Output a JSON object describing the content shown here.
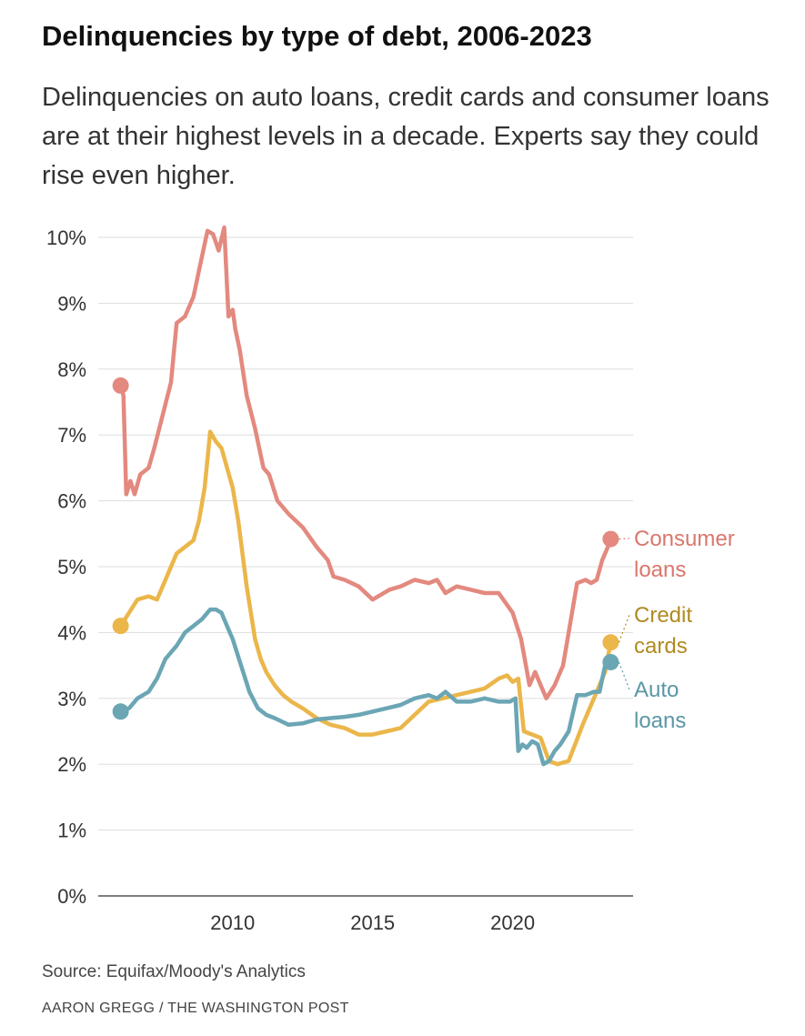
{
  "title": "Delinquencies by type of debt, 2006-2023",
  "subtitle": "Delinquencies on auto loans, credit cards and consumer loans are at their highest levels in a decade. Experts say they could rise even higher.",
  "source": "Source: Equifax/Moody's Analytics",
  "credit": "AARON GREGG / THE WASHINGTON POST",
  "chart_data": {
    "type": "line",
    "title": "Delinquencies by type of debt, 2006-2023",
    "xlabel": "",
    "ylabel": "",
    "xlim": [
      2005.2,
      2024.3
    ],
    "ylim": [
      0,
      10
    ],
    "x_ticks": [
      2010,
      2015,
      2020
    ],
    "x_tick_labels": [
      "2010",
      "2015",
      "2020"
    ],
    "y_ticks": [
      0,
      1,
      2,
      3,
      4,
      5,
      6,
      7,
      8,
      9,
      10
    ],
    "y_tick_labels": [
      "0%",
      "1%",
      "2%",
      "3%",
      "4%",
      "5%",
      "6%",
      "7%",
      "8%",
      "9%",
      "10%"
    ],
    "grid": "horizontal",
    "legend": "direct labels at right end of lines",
    "series": [
      {
        "name": "Consumer loans",
        "label_lines": [
          "Consumer",
          "loans"
        ],
        "color": "#e3897f",
        "label_color": "#d9776d",
        "x": [
          2006.0,
          2006.1,
          2006.2,
          2006.35,
          2006.5,
          2006.7,
          2007.0,
          2007.2,
          2007.5,
          2007.8,
          2008.0,
          2008.3,
          2008.6,
          2008.9,
          2009.1,
          2009.3,
          2009.5,
          2009.7,
          2009.85,
          2010.0,
          2010.1,
          2010.25,
          2010.5,
          2010.8,
          2011.1,
          2011.3,
          2011.6,
          2012.0,
          2012.5,
          2013.0,
          2013.4,
          2013.6,
          2014.0,
          2014.5,
          2015.0,
          2015.6,
          2016.0,
          2016.5,
          2017.0,
          2017.3,
          2017.6,
          2018.0,
          2018.5,
          2019.0,
          2019.5,
          2020.0,
          2020.3,
          2020.6,
          2020.8,
          2021.0,
          2021.2,
          2021.5,
          2021.8,
          2022.0,
          2022.3,
          2022.6,
          2022.8,
          2023.0,
          2023.2,
          2023.4,
          2023.5
        ],
        "y": [
          7.75,
          7.6,
          6.1,
          6.3,
          6.1,
          6.4,
          6.5,
          6.8,
          7.3,
          7.8,
          8.7,
          8.8,
          9.1,
          9.7,
          10.1,
          10.05,
          9.8,
          10.15,
          8.8,
          8.9,
          8.6,
          8.3,
          7.6,
          7.1,
          6.5,
          6.4,
          6.0,
          5.8,
          5.6,
          5.3,
          5.1,
          4.85,
          4.8,
          4.7,
          4.5,
          4.65,
          4.7,
          4.8,
          4.75,
          4.8,
          4.6,
          4.7,
          4.65,
          4.6,
          4.6,
          4.3,
          3.9,
          3.2,
          3.4,
          3.2,
          3.0,
          3.2,
          3.5,
          4.0,
          4.75,
          4.8,
          4.75,
          4.8,
          5.1,
          5.3,
          5.42
        ]
      },
      {
        "name": "Credit cards",
        "label_lines": [
          "Credit",
          "cards"
        ],
        "color": "#ebb64a",
        "label_color": "#b08a22",
        "x": [
          2006.0,
          2006.3,
          2006.6,
          2007.0,
          2007.3,
          2007.6,
          2008.0,
          2008.3,
          2008.6,
          2008.8,
          2009.0,
          2009.2,
          2009.4,
          2009.6,
          2009.8,
          2010.0,
          2010.2,
          2010.5,
          2010.8,
          2011.0,
          2011.2,
          2011.5,
          2011.8,
          2012.1,
          2012.5,
          2013.0,
          2013.5,
          2014.0,
          2014.5,
          2015.0,
          2015.5,
          2016.0,
          2016.5,
          2017.0,
          2017.5,
          2018.0,
          2018.5,
          2019.0,
          2019.5,
          2019.8,
          2020.0,
          2020.2,
          2020.4,
          2020.7,
          2021.0,
          2021.3,
          2021.6,
          2022.0,
          2022.5,
          2023.0,
          2023.3,
          2023.5
        ],
        "y": [
          4.1,
          4.3,
          4.5,
          4.55,
          4.5,
          4.8,
          5.2,
          5.3,
          5.4,
          5.7,
          6.2,
          7.05,
          6.9,
          6.8,
          6.5,
          6.2,
          5.7,
          4.7,
          3.9,
          3.6,
          3.4,
          3.2,
          3.05,
          2.95,
          2.85,
          2.7,
          2.6,
          2.55,
          2.45,
          2.45,
          2.5,
          2.55,
          2.75,
          2.95,
          3.0,
          3.05,
          3.1,
          3.15,
          3.3,
          3.35,
          3.25,
          3.3,
          2.5,
          2.45,
          2.4,
          2.05,
          2.0,
          2.05,
          2.6,
          3.1,
          3.4,
          3.85
        ]
      },
      {
        "name": "Auto loans",
        "label_lines": [
          "Auto",
          "loans"
        ],
        "color": "#6ba6b4",
        "label_color": "#5a97a6",
        "x": [
          2006.0,
          2006.3,
          2006.6,
          2007.0,
          2007.3,
          2007.6,
          2008.0,
          2008.3,
          2008.6,
          2008.9,
          2009.2,
          2009.4,
          2009.6,
          2009.8,
          2010.0,
          2010.3,
          2010.6,
          2010.9,
          2011.2,
          2011.5,
          2012.0,
          2012.5,
          2013.0,
          2013.5,
          2014.0,
          2014.5,
          2015.0,
          2015.5,
          2016.0,
          2016.5,
          2017.0,
          2017.3,
          2017.6,
          2018.0,
          2018.5,
          2019.0,
          2019.5,
          2019.9,
          2020.1,
          2020.2,
          2020.35,
          2020.5,
          2020.7,
          2020.9,
          2021.1,
          2021.3,
          2021.5,
          2021.7,
          2022.0,
          2022.3,
          2022.6,
          2022.9,
          2023.1,
          2023.3,
          2023.5
        ],
        "y": [
          2.8,
          2.85,
          3.0,
          3.1,
          3.3,
          3.6,
          3.8,
          4.0,
          4.1,
          4.2,
          4.35,
          4.35,
          4.3,
          4.1,
          3.9,
          3.5,
          3.1,
          2.85,
          2.75,
          2.7,
          2.6,
          2.62,
          2.68,
          2.7,
          2.72,
          2.75,
          2.8,
          2.85,
          2.9,
          3.0,
          3.05,
          3.0,
          3.1,
          2.95,
          2.95,
          3.0,
          2.95,
          2.95,
          3.0,
          2.2,
          2.3,
          2.25,
          2.35,
          2.3,
          2.0,
          2.05,
          2.2,
          2.3,
          2.5,
          3.05,
          3.05,
          3.1,
          3.1,
          3.5,
          3.55
        ]
      }
    ]
  }
}
